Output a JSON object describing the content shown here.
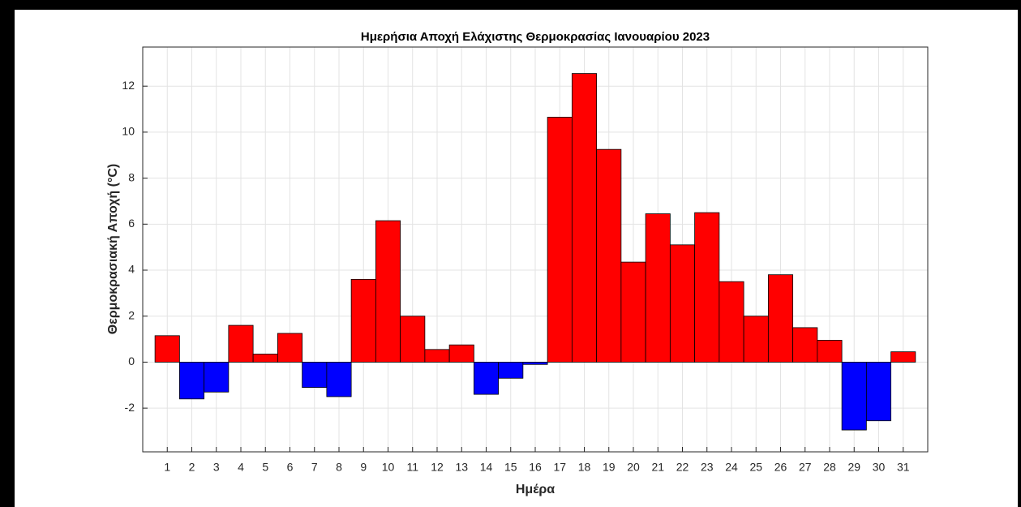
{
  "chart_data": {
    "type": "bar",
    "title": "Ημερήσια Αποχή Ελάχιστης Θερμοκρασίας Ιανουαρίου 2023",
    "x_label": "Ημέρα",
    "y_label": "Θερμοκρασιακή Αποχή (°C)",
    "x": [
      1,
      2,
      3,
      4,
      5,
      6,
      7,
      8,
      9,
      10,
      11,
      12,
      13,
      14,
      15,
      16,
      17,
      18,
      19,
      20,
      21,
      22,
      23,
      24,
      25,
      26,
      27,
      28,
      29,
      30,
      31
    ],
    "values": [
      1.15,
      -1.6,
      -1.3,
      1.6,
      0.35,
      1.25,
      -1.1,
      -1.5,
      3.6,
      6.15,
      2.0,
      0.55,
      0.75,
      -1.4,
      -0.7,
      -0.1,
      10.65,
      12.55,
      9.25,
      4.35,
      6.45,
      5.1,
      6.5,
      3.5,
      2.0,
      3.8,
      1.5,
      0.95,
      -2.95,
      -2.55,
      0.45
    ],
    "positive_color": "#ff0000",
    "negative_color": "#0000ff",
    "xlim": [
      0,
      32
    ],
    "xticks": [
      1,
      2,
      3,
      4,
      5,
      6,
      7,
      8,
      9,
      10,
      11,
      12,
      13,
      14,
      15,
      16,
      17,
      18,
      19,
      20,
      21,
      22,
      23,
      24,
      25,
      26,
      27,
      28,
      29,
      30,
      31
    ],
    "ylim": [
      -3.9,
      13.7
    ],
    "yticks": [
      -2,
      0,
      2,
      4,
      6,
      8,
      10,
      12
    ],
    "grid": true
  }
}
